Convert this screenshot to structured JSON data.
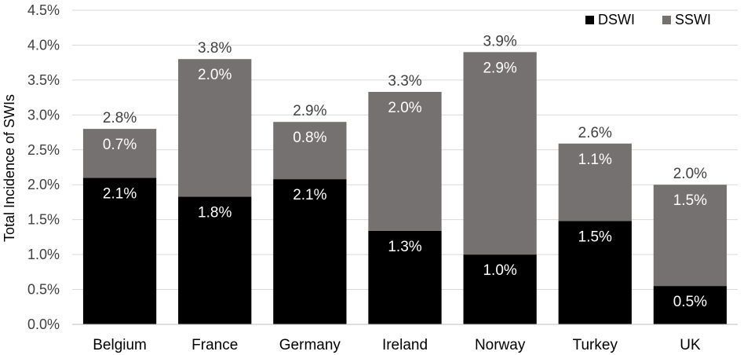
{
  "chart_data": {
    "type": "bar",
    "stacked": true,
    "title": "",
    "xlabel": "",
    "ylabel": "Total Incidence of SWIs",
    "ylim": [
      0,
      4.5
    ],
    "ytick_step": 0.5,
    "ytick_labels": [
      "0.0%",
      "0.5%",
      "1.0%",
      "1.5%",
      "2.0%",
      "2.5%",
      "3.0%",
      "3.5%",
      "4.0%",
      "4.5%"
    ],
    "grid": true,
    "legend_position": "top-right",
    "categories": [
      "Belgium",
      "France",
      "Germany",
      "Ireland",
      "Norway",
      "Turkey",
      "UK"
    ],
    "series": [
      {
        "name": "DSWI",
        "color": "#000000",
        "label_color": "#ffffff",
        "values": [
          2.1,
          1.83,
          2.08,
          1.34,
          1.0,
          1.48,
          0.55
        ],
        "labels": [
          "2.1%",
          "1.8%",
          "2.1%",
          "1.3%",
          "1.0%",
          "1.5%",
          "0.5%"
        ]
      },
      {
        "name": "SSWI",
        "color": "#767171",
        "label_color": "#ffffff",
        "values": [
          0.7,
          1.97,
          0.82,
          1.99,
          2.9,
          1.11,
          1.45
        ],
        "labels": [
          "0.7%",
          "2.0%",
          "0.8%",
          "2.0%",
          "2.9%",
          "1.1%",
          "1.5%"
        ]
      }
    ],
    "totals": [
      "2.8%",
      "3.8%",
      "2.9%",
      "3.3%",
      "3.9%",
      "2.6%",
      "2.0%"
    ]
  }
}
